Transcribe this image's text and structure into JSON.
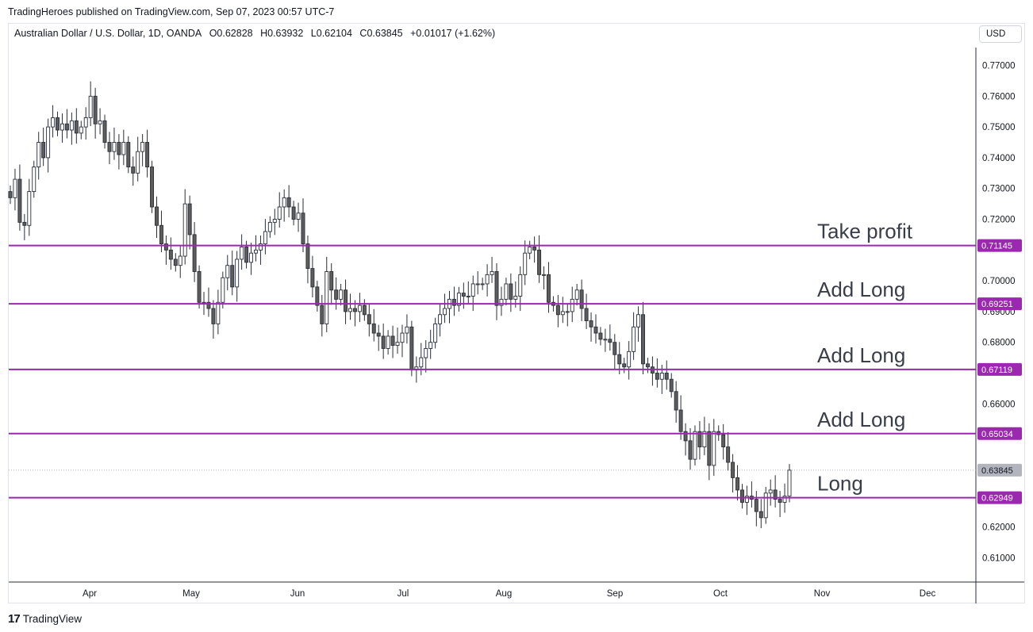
{
  "header": {
    "publisher_line": "TradingHeroes published on TradingView.com, Sep 07, 2023 00:57 UTC-7"
  },
  "legend": {
    "symbol": "Australian Dollar / U.S. Dollar, 1D, OANDA",
    "open": "O0.62828",
    "high": "H0.63932",
    "low": "L0.62104",
    "close": "C0.63845",
    "change": "+0.01017 (+1.62%)"
  },
  "currency_button": "USD",
  "footer": {
    "brand": "TradingView",
    "logo_mark": "17"
  },
  "colors": {
    "accent": "#9c27b0",
    "candle_fill_down": "#5d5d5d",
    "price_tag_current": "#b2b5be"
  },
  "chart_data": {
    "type": "candlestick",
    "ylim": [
      0.6,
      0.775
    ],
    "y_ticks": [
      "0.77000",
      "0.76000",
      "0.75000",
      "0.74000",
      "0.73000",
      "0.72000",
      "0.70000",
      "0.69000",
      "0.68000",
      "0.66000",
      "0.62000",
      "0.61000"
    ],
    "x_ticks": [
      "Apr",
      "May",
      "Jun",
      "Jul",
      "Aug",
      "Sep",
      "Oct",
      "Nov",
      "Dec"
    ],
    "current_price": "0.63845",
    "levels": [
      {
        "label": "Take profit",
        "price": 0.71145,
        "tag": "0.71145"
      },
      {
        "label": "Add Long",
        "price": 0.69251,
        "tag": "0.69251"
      },
      {
        "label": "Add Long",
        "price": 0.67119,
        "tag": "0.67119"
      },
      {
        "label": "Add Long",
        "price": 0.65034,
        "tag": "0.65034"
      },
      {
        "label": "Long",
        "price": 0.62949,
        "tag": "0.62949"
      }
    ],
    "closes": [
      0.727,
      0.733,
      0.719,
      0.718,
      0.729,
      0.737,
      0.745,
      0.74,
      0.75,
      0.753,
      0.749,
      0.751,
      0.749,
      0.752,
      0.748,
      0.75,
      0.753,
      0.76,
      0.751,
      0.752,
      0.745,
      0.742,
      0.745,
      0.741,
      0.745,
      0.737,
      0.735,
      0.742,
      0.745,
      0.737,
      0.724,
      0.718,
      0.712,
      0.71,
      0.707,
      0.705,
      0.708,
      0.725,
      0.715,
      0.703,
      0.693,
      0.693,
      0.691,
      0.686,
      0.693,
      0.701,
      0.705,
      0.698,
      0.707,
      0.711,
      0.706,
      0.709,
      0.71,
      0.712,
      0.716,
      0.719,
      0.72,
      0.724,
      0.727,
      0.724,
      0.72,
      0.722,
      0.712,
      0.704,
      0.698,
      0.692,
      0.686,
      0.703,
      0.697,
      0.694,
      0.697,
      0.69,
      0.691,
      0.69,
      0.692,
      0.689,
      0.686,
      0.683,
      0.682,
      0.678,
      0.682,
      0.679,
      0.68,
      0.683,
      0.685,
      0.671,
      0.672,
      0.675,
      0.678,
      0.68,
      0.686,
      0.689,
      0.691,
      0.694,
      0.692,
      0.696,
      0.695,
      0.695,
      0.699,
      0.699,
      0.699,
      0.702,
      0.703,
      0.692,
      0.694,
      0.699,
      0.694,
      0.695,
      0.702,
      0.709,
      0.711,
      0.71,
      0.702,
      0.702,
      0.693,
      0.692,
      0.689,
      0.69,
      0.69,
      0.694,
      0.697,
      0.691,
      0.687,
      0.685,
      0.683,
      0.681,
      0.681,
      0.68,
      0.676,
      0.673,
      0.672,
      0.677,
      0.685,
      0.689,
      0.673,
      0.672,
      0.67,
      0.668,
      0.67,
      0.668,
      0.664,
      0.658,
      0.651,
      0.648,
      0.642,
      0.651,
      0.646,
      0.651,
      0.64,
      0.651,
      0.65,
      0.646,
      0.641,
      0.636,
      0.632,
      0.628,
      0.63,
      0.629,
      0.625,
      0.623,
      0.631,
      0.632,
      0.629,
      0.628,
      0.63,
      0.63845
    ]
  }
}
